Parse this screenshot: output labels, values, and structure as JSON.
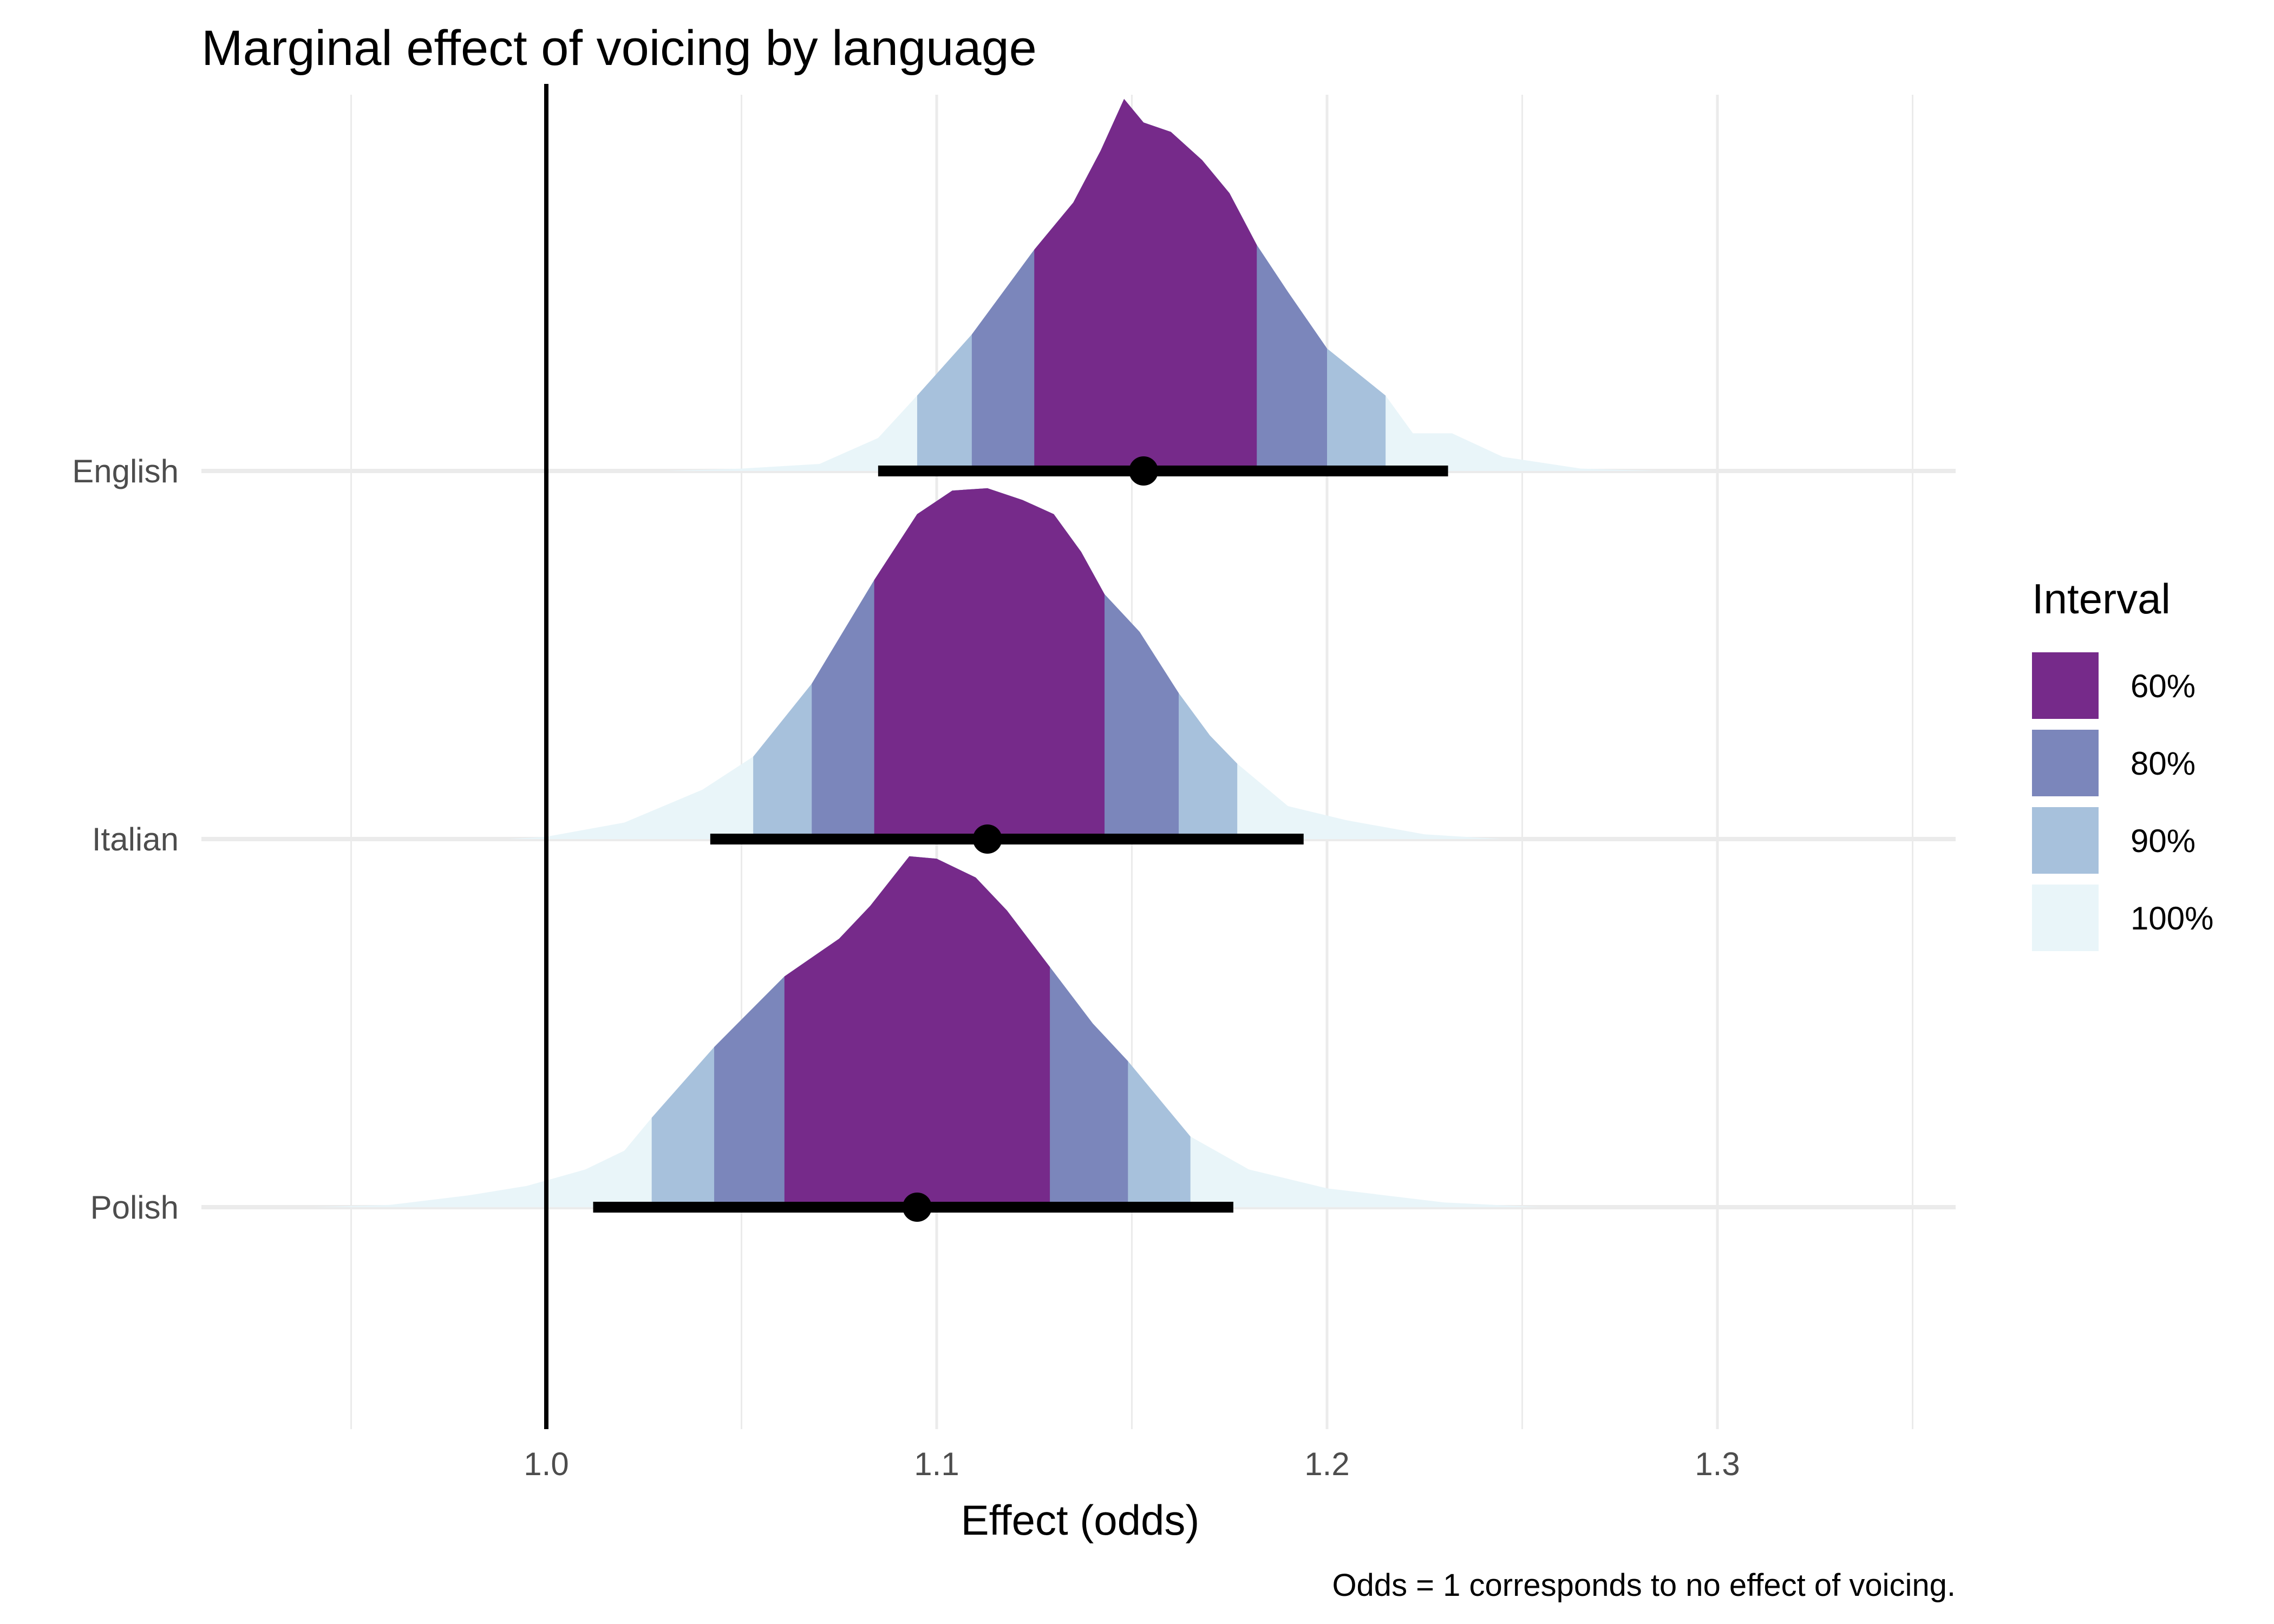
{
  "chart_data": {
    "type": "density-ridge",
    "title": "Marginal effect of voicing by language",
    "xlabel": "Effect (odds)",
    "ylabel": "",
    "caption": "Odds = 1 corresponds to no effect of voicing.",
    "xlim": [
      0.91,
      1.36
    ],
    "x_ticks": [
      1.0,
      1.1,
      1.2,
      1.3
    ],
    "x_tick_labels": [
      "1.0",
      "1.1",
      "1.2",
      "1.3"
    ],
    "reference_line": 1.0,
    "grid": true,
    "legend": {
      "title": "Interval",
      "position": "right",
      "entries": [
        {
          "label": "60%",
          "color": "#762a8a"
        },
        {
          "label": "80%",
          "color": "#7b86bb"
        },
        {
          "label": "90%",
          "color": "#a7c1dc"
        },
        {
          "label": "100%",
          "color": "#e9f5f9"
        }
      ]
    },
    "categories": [
      "English",
      "Italian",
      "Polish"
    ],
    "series": [
      {
        "name": "English",
        "median": 1.153,
        "interval_line": [
          1.085,
          1.231
        ],
        "intervals": {
          "60%": [
            1.125,
            1.182
          ],
          "80%": [
            1.109,
            1.2
          ],
          "90%": [
            1.095,
            1.215
          ]
        },
        "density": [
          [
            1.03,
            0.0
          ],
          [
            1.05,
            0.005
          ],
          [
            1.07,
            0.015
          ],
          [
            1.085,
            0.07
          ],
          [
            1.095,
            0.16
          ],
          [
            1.109,
            0.29
          ],
          [
            1.125,
            0.47
          ],
          [
            1.135,
            0.57
          ],
          [
            1.142,
            0.68
          ],
          [
            1.148,
            0.79
          ],
          [
            1.153,
            0.74
          ],
          [
            1.16,
            0.72
          ],
          [
            1.168,
            0.66
          ],
          [
            1.175,
            0.59
          ],
          [
            1.182,
            0.48
          ],
          [
            1.19,
            0.38
          ],
          [
            1.2,
            0.26
          ],
          [
            1.215,
            0.16
          ],
          [
            1.222,
            0.08
          ],
          [
            1.232,
            0.08
          ],
          [
            1.245,
            0.03
          ],
          [
            1.265,
            0.005
          ],
          [
            1.285,
            0.0
          ]
        ]
      },
      {
        "name": "Italian",
        "median": 1.113,
        "interval_line": [
          1.042,
          1.194
        ],
        "intervals": {
          "60%": [
            1.084,
            1.143
          ],
          "80%": [
            1.068,
            1.162
          ],
          "90%": [
            1.053,
            1.177
          ]
        },
        "density": [
          [
            0.99,
            0.0
          ],
          [
            1.0,
            0.005
          ],
          [
            1.02,
            0.035
          ],
          [
            1.04,
            0.105
          ],
          [
            1.053,
            0.175
          ],
          [
            1.068,
            0.33
          ],
          [
            1.084,
            0.55
          ],
          [
            1.095,
            0.69
          ],
          [
            1.104,
            0.74
          ],
          [
            1.113,
            0.745
          ],
          [
            1.122,
            0.72
          ],
          [
            1.13,
            0.69
          ],
          [
            1.137,
            0.61
          ],
          [
            1.143,
            0.52
          ],
          [
            1.152,
            0.44
          ],
          [
            1.162,
            0.31
          ],
          [
            1.17,
            0.22
          ],
          [
            1.177,
            0.16
          ],
          [
            1.19,
            0.07
          ],
          [
            1.205,
            0.04
          ],
          [
            1.225,
            0.01
          ],
          [
            1.245,
            0.0
          ]
        ]
      },
      {
        "name": "Polish",
        "median": 1.095,
        "interval_line": [
          1.012,
          1.176
        ],
        "intervals": {
          "60%": [
            1.061,
            1.129
          ],
          "80%": [
            1.043,
            1.149
          ],
          "90%": [
            1.027,
            1.165
          ]
        },
        "density": [
          [
            0.94,
            0.0
          ],
          [
            0.96,
            0.005
          ],
          [
            0.98,
            0.025
          ],
          [
            0.995,
            0.045
          ],
          [
            1.01,
            0.08
          ],
          [
            1.02,
            0.12
          ],
          [
            1.027,
            0.19
          ],
          [
            1.043,
            0.34
          ],
          [
            1.061,
            0.49
          ],
          [
            1.075,
            0.57
          ],
          [
            1.083,
            0.64
          ],
          [
            1.093,
            0.745
          ],
          [
            1.1,
            0.74
          ],
          [
            1.11,
            0.7
          ],
          [
            1.118,
            0.63
          ],
          [
            1.129,
            0.51
          ],
          [
            1.14,
            0.39
          ],
          [
            1.149,
            0.31
          ],
          [
            1.158,
            0.22
          ],
          [
            1.165,
            0.15
          ],
          [
            1.18,
            0.08
          ],
          [
            1.2,
            0.04
          ],
          [
            1.23,
            0.01
          ],
          [
            1.255,
            0.0
          ]
        ]
      }
    ]
  }
}
